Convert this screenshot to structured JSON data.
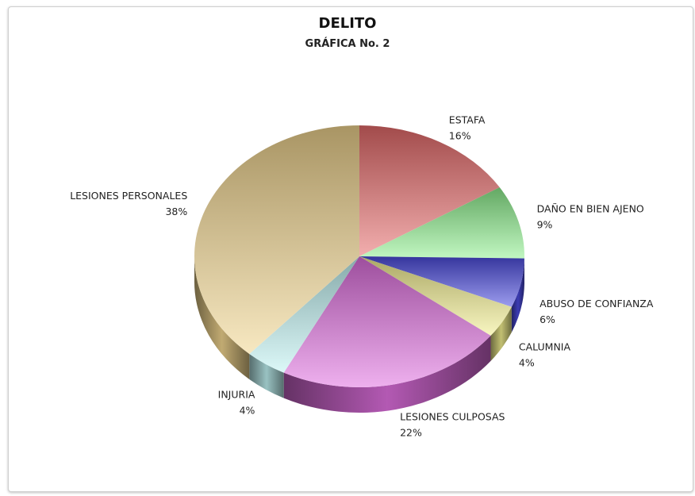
{
  "chart_data": {
    "type": "pie",
    "title": "DELITO",
    "subtitle": "GRÁFICA No. 2",
    "style": "3d",
    "slices": [
      {
        "label": "ESTAFA",
        "value": 16,
        "value_label": "16%",
        "color": "#e86b6b"
      },
      {
        "label": "DAÑO EN BIEN AJENO",
        "value": 9,
        "value_label": "9%",
        "color": "#8ef08e"
      },
      {
        "label": "ABUSO DE CONFIANZA",
        "value": 6,
        "value_label": "6%",
        "color": "#4b4be0"
      },
      {
        "label": "CALUMNIA",
        "value": 4,
        "value_label": "4%",
        "color": "#f3ef8f"
      },
      {
        "label": "LESIONES CULPOSAS",
        "value": 22,
        "value_label": "22%",
        "color": "#e06fe0"
      },
      {
        "label": "INJURIA",
        "value": 4,
        "value_label": "4%",
        "color": "#bff3f3"
      },
      {
        "label": "LESIONES PERSONALES",
        "value": 38,
        "value_label": "38%",
        "color": "#f1d58f"
      }
    ]
  }
}
